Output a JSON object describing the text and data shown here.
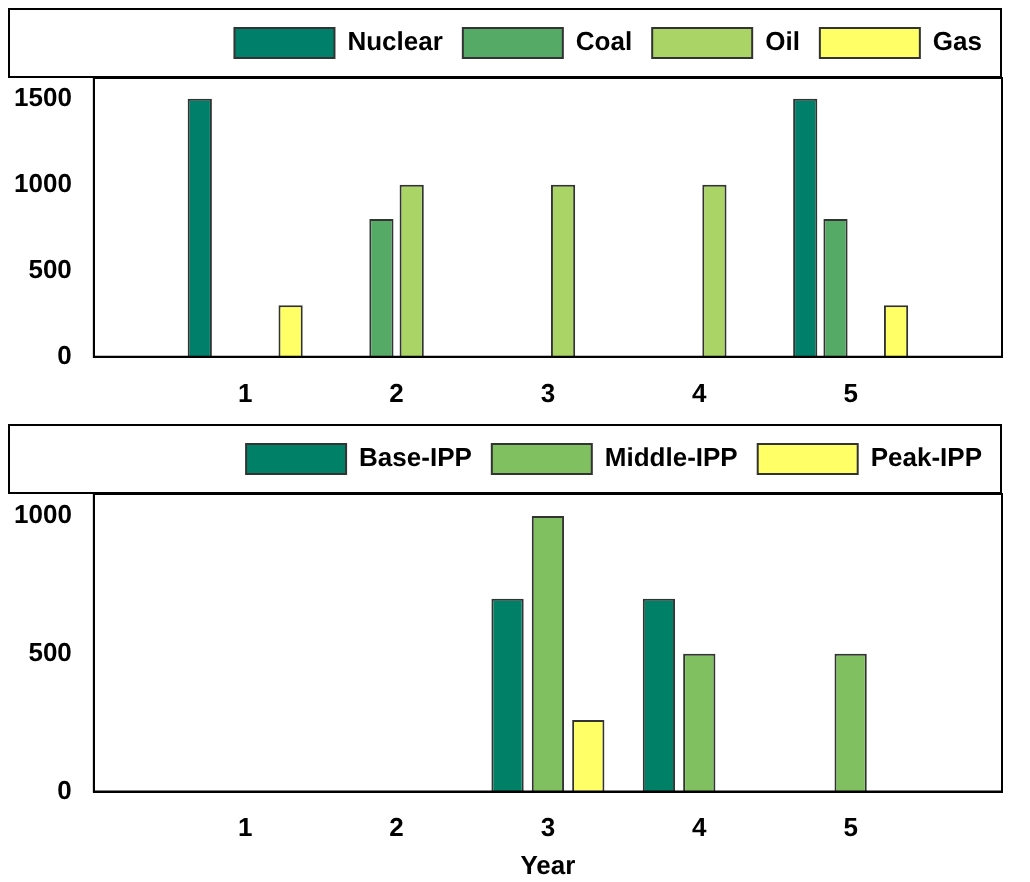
{
  "chart_data": [
    {
      "type": "bar",
      "x": [
        1,
        2,
        3,
        4,
        5
      ],
      "xlim": [
        0,
        6
      ],
      "xticks": [
        1,
        2,
        3,
        4,
        5
      ],
      "ylim": [
        0,
        1620
      ],
      "yticks": [
        0,
        500,
        1000,
        1500
      ],
      "grid": false,
      "legend": "top",
      "series": [
        {
          "name": "Nuclear",
          "color": "#00806a",
          "values": [
            1500,
            0,
            0,
            0,
            1500
          ]
        },
        {
          "name": "Coal",
          "color": "#55aa66",
          "values": [
            0,
            800,
            0,
            0,
            800
          ]
        },
        {
          "name": "Oil",
          "color": "#aad466",
          "values": [
            0,
            1000,
            1000,
            1000,
            0
          ]
        },
        {
          "name": "Gas",
          "color": "#ffff66",
          "values": [
            300,
            0,
            0,
            0,
            300
          ]
        }
      ]
    },
    {
      "type": "bar",
      "x": [
        1,
        2,
        3,
        4,
        5
      ],
      "xlim": [
        0,
        6
      ],
      "xticks": [
        1,
        2,
        3,
        4,
        5
      ],
      "ylim": [
        0,
        1080
      ],
      "yticks": [
        0,
        500,
        1000
      ],
      "grid": false,
      "legend": "top",
      "xlabel": "Year",
      "series": [
        {
          "name": "Base-IPP",
          "color": "#008066",
          "values": [
            0,
            0,
            700,
            700,
            0
          ]
        },
        {
          "name": "Middle-IPP",
          "color": "#80c060",
          "values": [
            0,
            0,
            1000,
            500,
            500
          ]
        },
        {
          "name": "Peak-IPP",
          "color": "#ffff66",
          "values": [
            0,
            0,
            260,
            0,
            0
          ]
        }
      ]
    }
  ]
}
